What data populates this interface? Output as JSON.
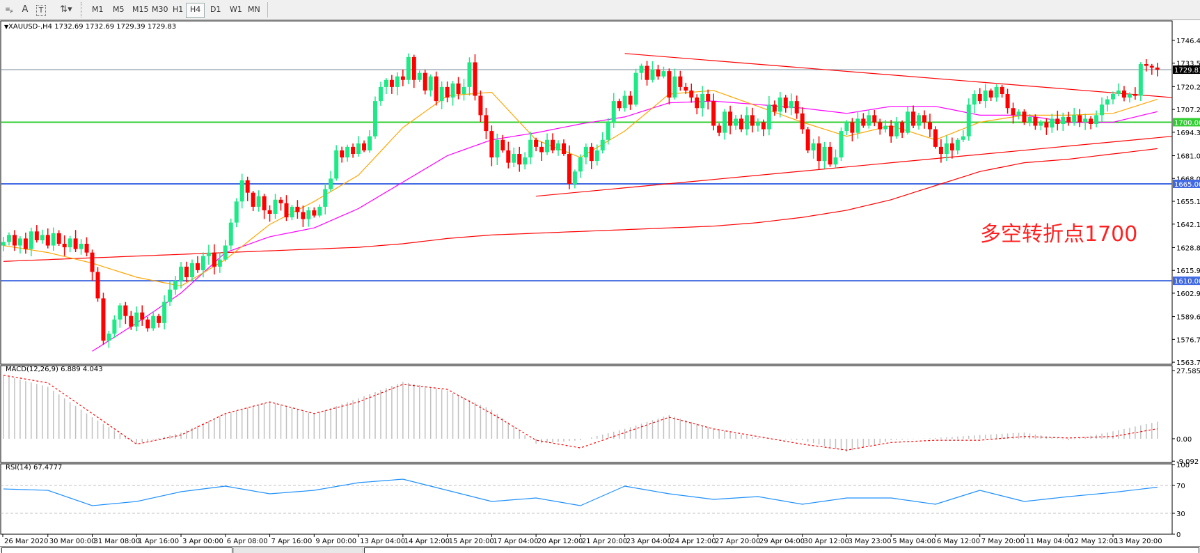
{
  "toolbar": {
    "icons": [
      "grid-f-icon",
      "text-a-icon",
      "text-box-icon",
      "arrows-icon"
    ],
    "timeframes": [
      "M1",
      "M5",
      "M15",
      "M30",
      "H1",
      "H4",
      "D1",
      "W1",
      "MN"
    ],
    "selected_timeframe": "H4"
  },
  "chart_header": "XAUUSD-,H4  1732.69 1732.69 1729.39 1729.83",
  "annotation": {
    "text": "多空转折点1700",
    "color": "#ff2020"
  },
  "colors": {
    "bull": "#1de986",
    "bear": "#ff0000",
    "ma_fast": "#ffa500",
    "ma_mid": "#ff00ff",
    "ma_slow": "#ff0000",
    "trend": "#ff0000",
    "level_green": "#32cd32",
    "level_blue": "#4169e1",
    "macd_hist": "#c0c0c0",
    "macd_signal": "#ff0000",
    "rsi": "#1e90ff"
  },
  "chart_data": [
    {
      "type": "candlestick",
      "symbol": "XAUUSD-",
      "timeframe": "H4",
      "ylim": [
        1562.6,
        1758.7
      ],
      "price_ticks": [
        "1746.45",
        "1733.50",
        "1720.20",
        "1707.25",
        "1694.30",
        "1681.00",
        "1668.05",
        "1655.10",
        "1642.15",
        "1628.85",
        "1615.90",
        "1602.95",
        "1589.65",
        "1576.70",
        "1563.75"
      ],
      "time_labels": [
        "26 Mar 2020",
        "30 Mar 00:00",
        "31 Mar 08:00",
        "1 Apr 16:00",
        "3 Apr 00:00",
        "6 Apr 08:00",
        "7 Apr 16:00",
        "9 Apr 00:00",
        "13 Apr 04:00",
        "14 Apr 12:00",
        "15 Apr 20:00",
        "17 Apr 04:00",
        "20 Apr 12:00",
        "21 Apr 20:00",
        "23 Apr 04:00",
        "24 Apr 12:00",
        "27 Apr 20:00",
        "29 Apr 04:00",
        "30 Apr 12:00",
        "3 May 23:00",
        "5 May 04:00",
        "6 May 12:00",
        "7 May 20:00",
        "11 May 04:00",
        "12 May 12:00",
        "13 May 20:00"
      ],
      "bars_per_label": 8,
      "close": [
        1632,
        1636,
        1630,
        1634,
        1628,
        1638,
        1633,
        1636,
        1630,
        1637,
        1631,
        1629,
        1634,
        1628,
        1631,
        1626,
        1615,
        1600,
        1576,
        1580,
        1588,
        1596,
        1590,
        1584,
        1592,
        1588,
        1583,
        1590,
        1586,
        1598,
        1605,
        1610,
        1618,
        1612,
        1620,
        1616,
        1624,
        1626,
        1618,
        1622,
        1630,
        1643,
        1655,
        1667,
        1660,
        1652,
        1658,
        1650,
        1648,
        1656,
        1654,
        1646,
        1652,
        1649,
        1645,
        1650,
        1647,
        1652,
        1662,
        1668,
        1684,
        1680,
        1686,
        1682,
        1688,
        1684,
        1692,
        1712,
        1720,
        1724,
        1720,
        1726,
        1724,
        1737,
        1724,
        1728,
        1718,
        1726,
        1712,
        1720,
        1714,
        1722,
        1716,
        1720,
        1734,
        1715,
        1704,
        1695,
        1680,
        1690,
        1684,
        1677,
        1682,
        1676,
        1680,
        1690,
        1686,
        1683,
        1690,
        1684,
        1688,
        1682,
        1665,
        1672,
        1680,
        1686,
        1678,
        1684,
        1690,
        1700,
        1712,
        1708,
        1715,
        1710,
        1728,
        1732,
        1724,
        1730,
        1726,
        1729,
        1714,
        1726,
        1720,
        1718,
        1714,
        1708,
        1716,
        1712,
        1698,
        1694,
        1706,
        1698,
        1702,
        1696,
        1704,
        1698,
        1700,
        1696,
        1710,
        1706,
        1714,
        1708,
        1712,
        1705,
        1696,
        1684,
        1688,
        1678,
        1686,
        1676,
        1680,
        1695,
        1700,
        1694,
        1702,
        1698,
        1704,
        1700,
        1696,
        1698,
        1692,
        1700,
        1694,
        1706,
        1698,
        1704,
        1700,
        1696,
        1686,
        1682,
        1688,
        1684,
        1690,
        1692,
        1710,
        1716,
        1712,
        1718,
        1714,
        1720,
        1716,
        1708,
        1704,
        1706,
        1700,
        1703,
        1698,
        1700,
        1697,
        1702,
        1699,
        1703,
        1700,
        1704,
        1700,
        1702,
        1699,
        1704,
        1710,
        1713,
        1716,
        1718,
        1714,
        1716,
        1715,
        1733,
        1732,
        1731,
        1729.83
      ],
      "ma_sampled_at_labels": {
        "fast": [
          1630,
          1626,
          1620,
          1612,
          1607,
          1622,
          1642,
          1655,
          1670,
          1697,
          1715,
          1717,
          1690,
          1680,
          1695,
          1716,
          1718,
          1709,
          1700,
          1692,
          1698,
          1690,
          1700,
          1704,
          1704,
          1705,
          1713
        ],
        "mid": [
          null,
          null,
          1570,
          1586,
          1603,
          1626,
          1635,
          1640,
          1651,
          1666,
          1681,
          1690,
          1694,
          1699,
          1703,
          1711,
          1712,
          1710,
          1708,
          1705,
          1709,
          1709,
          1704,
          1704,
          1700,
          1700,
          1706
        ],
        "slow": [
          1621,
          1622,
          1623,
          1624,
          1625,
          1626,
          1627,
          1628,
          1629,
          1631,
          1634,
          1636,
          1637,
          1638,
          1639,
          1640,
          1641,
          1643,
          1646,
          1650,
          1656,
          1664,
          1672,
          1677,
          1679,
          1682,
          1685
        ]
      },
      "trendlines": [
        {
          "from": [
            "23 Apr 04:00",
            1739
          ],
          "to": [
            "end",
            1714
          ]
        },
        {
          "from": [
            "20 Apr 12:00",
            1658
          ],
          "to": [
            "end",
            1692
          ]
        }
      ],
      "horizontal_levels": [
        {
          "price": 1700.0,
          "label": "1700.00",
          "color": "#32cd32"
        },
        {
          "price": 1665.0,
          "label": "1665.00",
          "color": "#4169e1"
        },
        {
          "price": 1610.0,
          "label": "1610.00",
          "color": "#4169e1"
        }
      ],
      "current_price": {
        "price": 1729.83,
        "label": "1729.83"
      }
    },
    {
      "type": "bar",
      "title": "MACD(12,26,9) 6.889 4.043",
      "ylim": [
        -9.6,
        29.3
      ],
      "ticks": [
        "27.585",
        "0.00",
        "-9.092"
      ],
      "macd_sampled_at_labels": [
        25.7,
        21,
        8.7,
        -2,
        2.5,
        10,
        14.9,
        10,
        16.4,
        23,
        19.5,
        11.8,
        -2,
        -0.6,
        4,
        9.6,
        4,
        0.3,
        -0.6,
        -5.3,
        -0.6,
        0.3,
        1.5,
        2.5,
        -0.6,
        3,
        6.889
      ],
      "signal_sampled_at_labels": [
        25.7,
        22.6,
        10.2,
        -2.2,
        1.5,
        10.2,
        14.9,
        10.2,
        14.9,
        22,
        20,
        10.2,
        -0.6,
        -3.7,
        2.5,
        8.7,
        4,
        0.9,
        -2.2,
        -4.6,
        -1.5,
        -0.6,
        -0.6,
        0.9,
        0.3,
        0.9,
        4.043
      ]
    },
    {
      "type": "line",
      "title": "RSI(14) 67.4777",
      "ylim": [
        0,
        100
      ],
      "ticks": [
        "100",
        "70",
        "30",
        "0"
      ],
      "levels": [
        70,
        30
      ],
      "rsi_sampled_at_labels": [
        65,
        63,
        41,
        47,
        61,
        69,
        58,
        63,
        74,
        79,
        63,
        47,
        52,
        41,
        69,
        58,
        50,
        54,
        43,
        52,
        52,
        43,
        63,
        47,
        54,
        60,
        67.4777
      ]
    }
  ]
}
